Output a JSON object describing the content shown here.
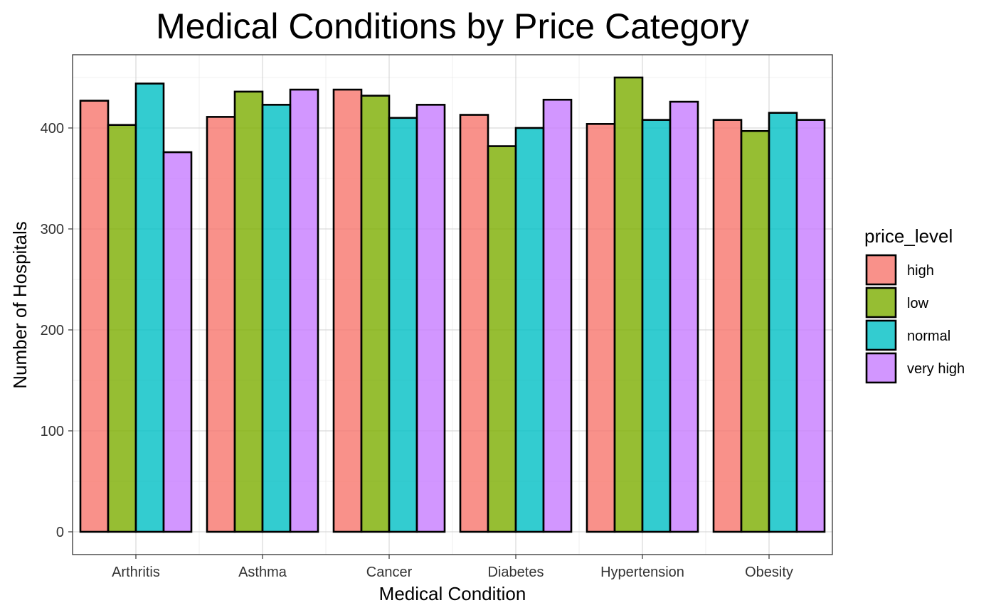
{
  "chart_data": {
    "type": "bar",
    "title": "Medical Conditions by Price Category",
    "xlabel": "Medical Condition",
    "ylabel": "Number of Hospitals",
    "categories": [
      "Arthritis",
      "Asthma",
      "Cancer",
      "Diabetes",
      "Hypertension",
      "Obesity"
    ],
    "series": [
      {
        "name": "high",
        "color": "#F8766D",
        "values": [
          427,
          411,
          438,
          413,
          404,
          408
        ]
      },
      {
        "name": "low",
        "color": "#7CAE00",
        "values": [
          403,
          436,
          432,
          382,
          450,
          397
        ]
      },
      {
        "name": "normal",
        "color": "#00BFC4",
        "values": [
          444,
          423,
          410,
          400,
          408,
          415
        ]
      },
      {
        "name": "very high",
        "color": "#C77CFF",
        "values": [
          376,
          438,
          423,
          428,
          426,
          408
        ]
      }
    ],
    "ylim": [
      -22.5,
      472.5
    ],
    "yticks": [
      0,
      100,
      200,
      300,
      400
    ],
    "yticks_minor": [
      50,
      150,
      250,
      350,
      450
    ],
    "legend": {
      "title": "price_level",
      "position": "right"
    },
    "grid": true,
    "bar_fill_opacity": 0.8
  }
}
